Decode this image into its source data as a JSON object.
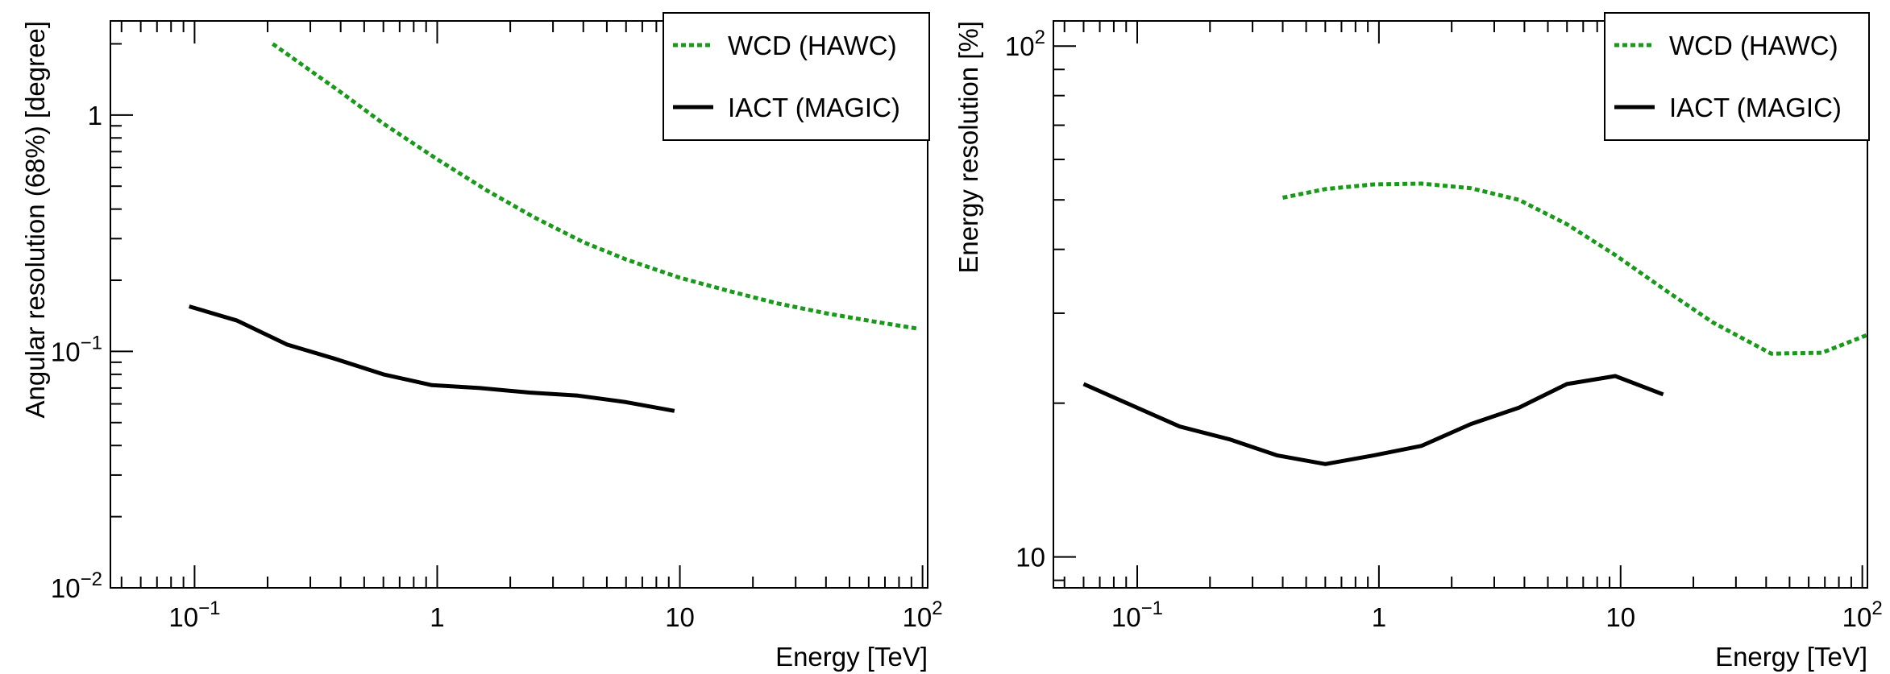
{
  "chart_data": [
    {
      "type": "line",
      "xlabel": "Energy [TeV]",
      "ylabel": "Angular resolution (68%) [degree]",
      "x_scale": "log",
      "y_scale": "log",
      "xlim": [
        0.045,
        105
      ],
      "ylim": [
        0.01,
        2.5
      ],
      "grid": false,
      "legend_position": "top-right",
      "x_ticks": [
        {
          "value": 0.1,
          "base": "10",
          "exp": "−1"
        },
        {
          "value": 1,
          "base": "1",
          "exp": ""
        },
        {
          "value": 10,
          "base": "10",
          "exp": ""
        },
        {
          "value": 100,
          "base": "10",
          "exp": "2"
        }
      ],
      "y_ticks": [
        {
          "value": 0.01,
          "base": "10",
          "exp": "−2"
        },
        {
          "value": 0.1,
          "base": "10",
          "exp": "−1"
        },
        {
          "value": 1,
          "base": "1",
          "exp": ""
        }
      ],
      "series": [
        {
          "name": "WCD (HAWC)",
          "color": "#1a9a1a",
          "style": "dotted",
          "x": [
            0.21,
            0.4,
            0.6,
            1.0,
            1.6,
            2.5,
            4,
            6,
            10,
            16,
            25,
            40,
            60,
            75,
            95
          ],
          "y": [
            2.0,
            1.25,
            0.92,
            0.65,
            0.48,
            0.37,
            0.29,
            0.245,
            0.205,
            0.18,
            0.16,
            0.145,
            0.135,
            0.13,
            0.125
          ]
        },
        {
          "name": "IACT (MAGIC)",
          "color": "#000000",
          "style": "solid",
          "x": [
            0.095,
            0.15,
            0.24,
            0.38,
            0.6,
            0.95,
            1.5,
            2.4,
            3.8,
            6.0,
            9.5
          ],
          "y": [
            0.155,
            0.135,
            0.107,
            0.093,
            0.08,
            0.072,
            0.07,
            0.067,
            0.065,
            0.061,
            0.056
          ]
        }
      ]
    },
    {
      "type": "line",
      "xlabel": "Energy [TeV]",
      "ylabel": "Energy resolution [%]",
      "x_scale": "log",
      "y_scale": "log",
      "xlim": [
        0.045,
        105
      ],
      "ylim": [
        8.7,
        112
      ],
      "grid": false,
      "legend_position": "top-right",
      "x_ticks": [
        {
          "value": 0.1,
          "base": "10",
          "exp": "−1"
        },
        {
          "value": 1,
          "base": "1",
          "exp": ""
        },
        {
          "value": 10,
          "base": "10",
          "exp": ""
        },
        {
          "value": 100,
          "base": "10",
          "exp": "2"
        }
      ],
      "y_ticks": [
        {
          "value": 10,
          "base": "10",
          "exp": ""
        },
        {
          "value": 100,
          "base": "10",
          "exp": "2"
        }
      ],
      "series": [
        {
          "name": "WCD (HAWC)",
          "color": "#1a9a1a",
          "style": "dotted",
          "x": [
            0.4,
            0.6,
            0.95,
            1.5,
            2.4,
            3.8,
            6,
            9.5,
            15,
            24,
            42,
            68,
            105
          ],
          "y": [
            50.5,
            52.5,
            53.6,
            53.8,
            52.7,
            50,
            44.8,
            39,
            33.5,
            28.8,
            25,
            25.1,
            27.2
          ]
        },
        {
          "name": "IACT (MAGIC)",
          "color": "#000000",
          "style": "solid",
          "x": [
            0.06,
            0.095,
            0.15,
            0.24,
            0.38,
            0.6,
            0.95,
            1.5,
            2.4,
            3.8,
            6.0,
            9.5,
            15
          ],
          "y": [
            21.8,
            19.8,
            18.0,
            17.0,
            15.8,
            15.2,
            15.8,
            16.5,
            18.2,
            19.6,
            21.8,
            22.6,
            20.8
          ]
        }
      ]
    }
  ]
}
